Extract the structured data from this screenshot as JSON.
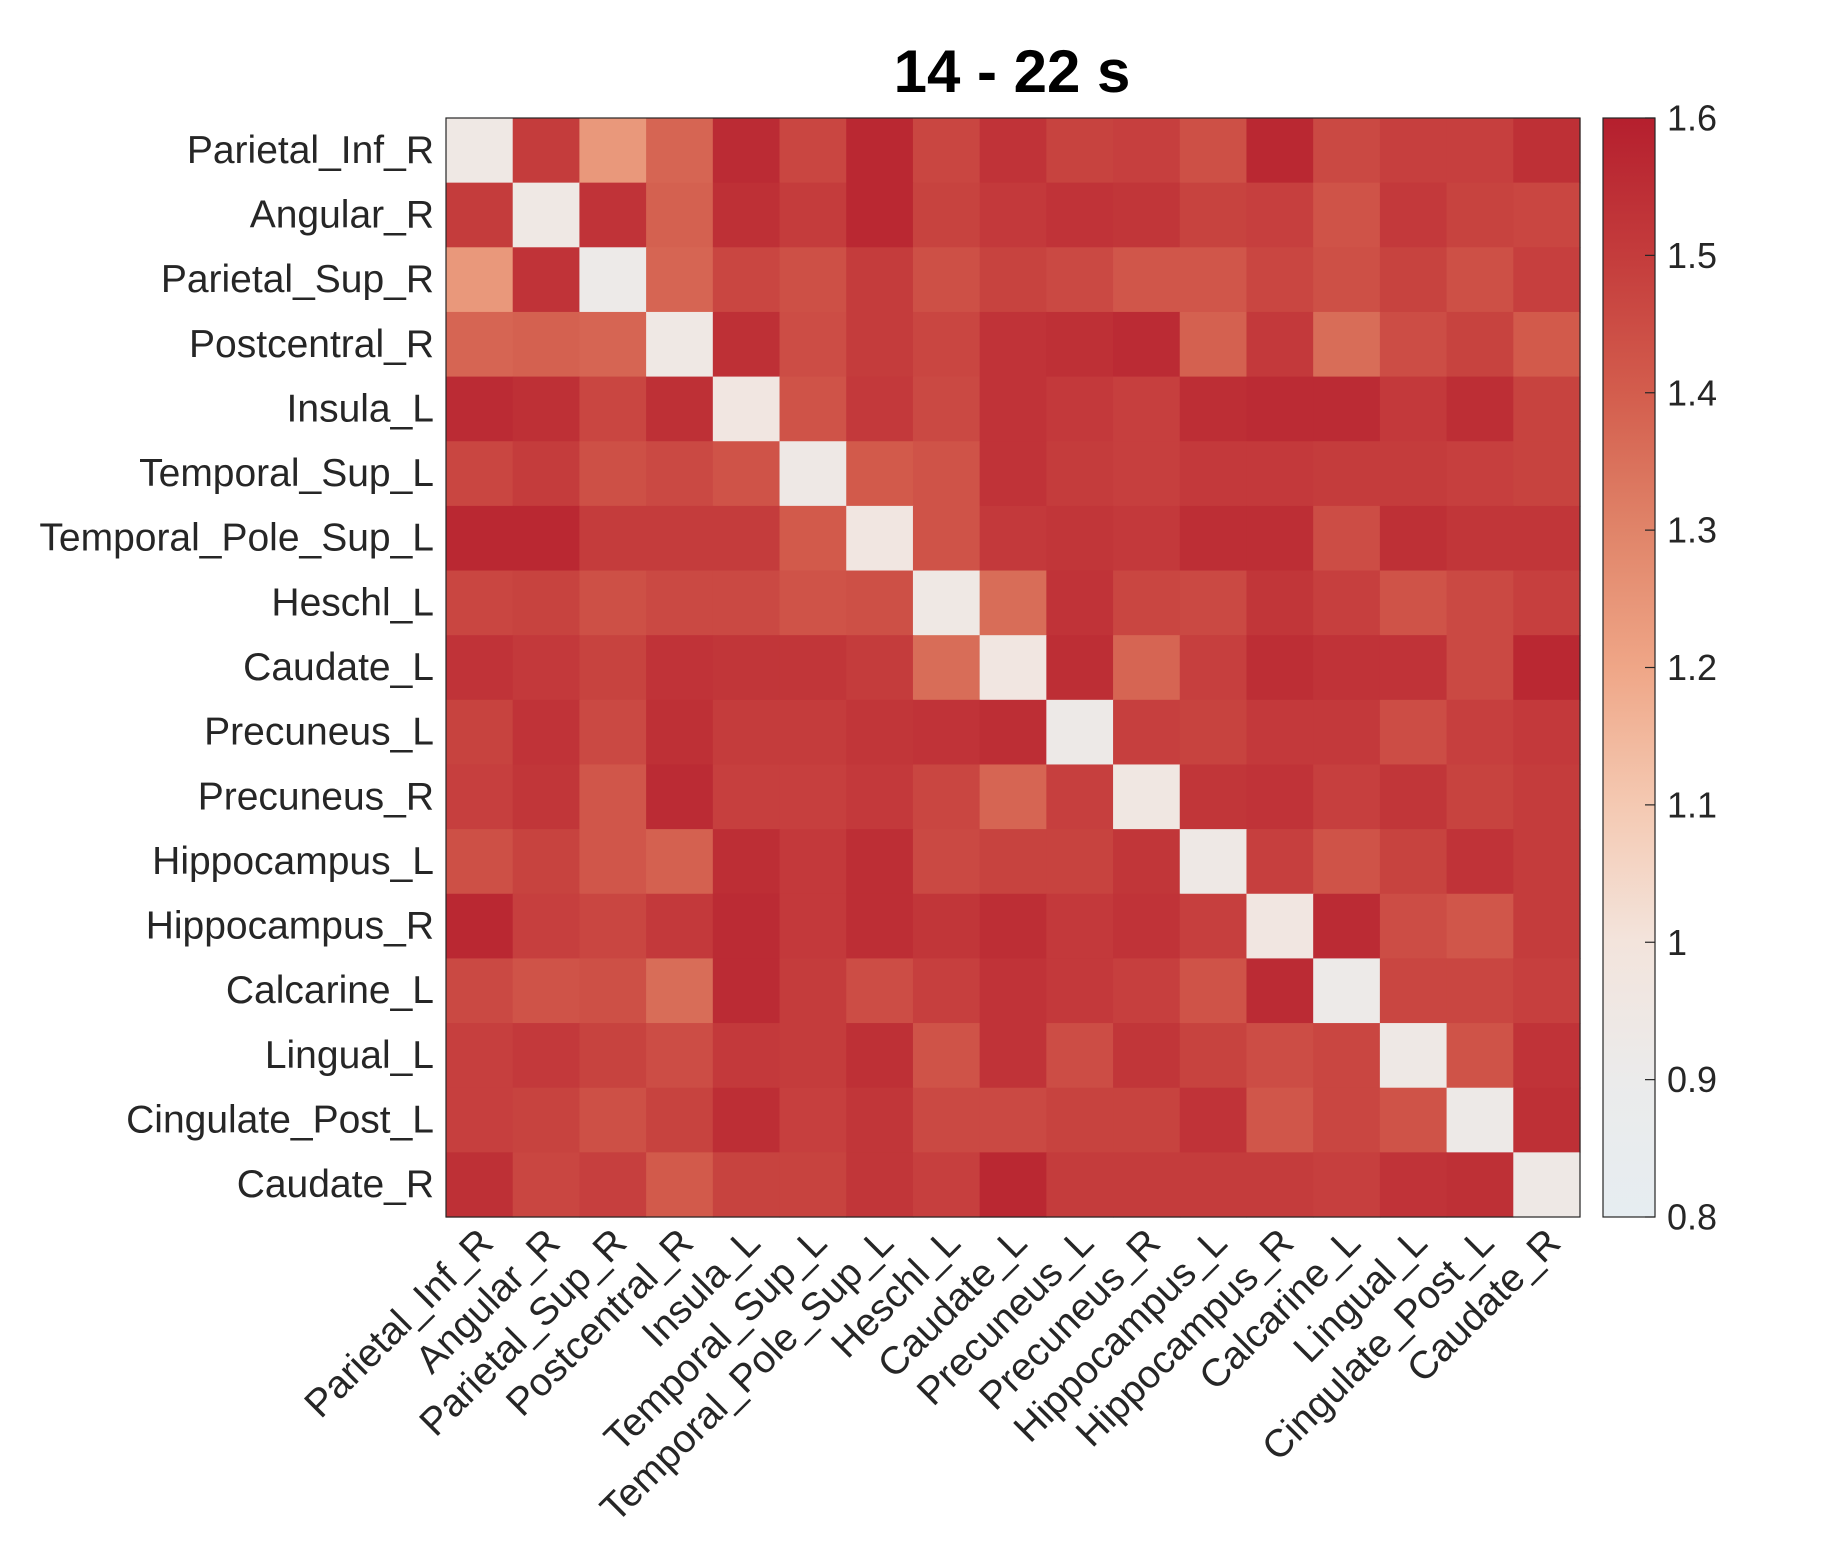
{
  "chart_data": {
    "type": "heatmap",
    "title": "14 - 22 s",
    "row_labels": [
      "Parietal_Inf_R",
      "Angular_R",
      "Parietal_Sup_R",
      "Postcentral_R",
      "Insula_L",
      "Temporal_Sup_L",
      "Temporal_Pole_Sup_L",
      "Heschl_L",
      "Caudate_L",
      "Precuneus_L",
      "Precuneus_R",
      "Hippocampus_L",
      "Hippocampus_R",
      "Calcarine_L",
      "Lingual_L",
      "Cingulate_Post_L",
      "Caudate_R"
    ],
    "col_labels": [
      "Parietal_Inf_R",
      "Angular_R",
      "Parietal_Sup_R",
      "Postcentral_R",
      "Insula_L",
      "Temporal_Sup_L",
      "Temporal_Pole_Sup_L",
      "Heschl_L",
      "Caudate_L",
      "Precuneus_L",
      "Precuneus_R",
      "Hippocampus_L",
      "Hippocampus_R",
      "Calcarine_L",
      "Lingual_L",
      "Cingulate_Post_L",
      "Caudate_R"
    ],
    "values": [
      [
        0.95,
        1.5,
        1.24,
        1.38,
        1.56,
        1.47,
        1.57,
        1.47,
        1.53,
        1.48,
        1.49,
        1.44,
        1.57,
        1.46,
        1.49,
        1.49,
        1.54
      ],
      [
        1.5,
        0.95,
        1.53,
        1.39,
        1.54,
        1.5,
        1.57,
        1.48,
        1.51,
        1.53,
        1.52,
        1.48,
        1.49,
        1.43,
        1.51,
        1.48,
        1.47
      ],
      [
        1.24,
        1.53,
        0.92,
        1.38,
        1.47,
        1.44,
        1.5,
        1.44,
        1.48,
        1.46,
        1.42,
        1.42,
        1.47,
        1.44,
        1.48,
        1.44,
        1.49
      ],
      [
        1.38,
        1.39,
        1.38,
        0.95,
        1.54,
        1.45,
        1.5,
        1.47,
        1.53,
        1.54,
        1.56,
        1.39,
        1.51,
        1.36,
        1.45,
        1.48,
        1.41
      ],
      [
        1.56,
        1.54,
        1.47,
        1.54,
        0.97,
        1.43,
        1.51,
        1.46,
        1.53,
        1.51,
        1.49,
        1.55,
        1.56,
        1.56,
        1.51,
        1.55,
        1.48
      ],
      [
        1.47,
        1.5,
        1.44,
        1.46,
        1.43,
        0.94,
        1.41,
        1.43,
        1.53,
        1.5,
        1.49,
        1.51,
        1.51,
        1.5,
        1.5,
        1.49,
        1.48
      ],
      [
        1.57,
        1.57,
        1.5,
        1.5,
        1.5,
        1.41,
        0.97,
        1.43,
        1.51,
        1.52,
        1.51,
        1.55,
        1.55,
        1.45,
        1.54,
        1.52,
        1.52
      ],
      [
        1.47,
        1.48,
        1.44,
        1.46,
        1.46,
        1.43,
        1.44,
        0.95,
        1.36,
        1.53,
        1.47,
        1.46,
        1.52,
        1.49,
        1.43,
        1.46,
        1.49
      ],
      [
        1.53,
        1.51,
        1.48,
        1.53,
        1.52,
        1.52,
        1.5,
        1.36,
        0.97,
        1.55,
        1.38,
        1.49,
        1.55,
        1.53,
        1.53,
        1.46,
        1.57
      ],
      [
        1.48,
        1.53,
        1.46,
        1.54,
        1.5,
        1.5,
        1.52,
        1.53,
        1.55,
        0.93,
        1.49,
        1.48,
        1.51,
        1.51,
        1.45,
        1.49,
        1.51
      ],
      [
        1.49,
        1.52,
        1.42,
        1.56,
        1.49,
        1.49,
        1.51,
        1.47,
        1.38,
        1.49,
        0.96,
        1.52,
        1.53,
        1.49,
        1.52,
        1.48,
        1.5
      ],
      [
        1.44,
        1.48,
        1.42,
        1.39,
        1.55,
        1.51,
        1.55,
        1.46,
        1.48,
        1.48,
        1.52,
        0.94,
        1.49,
        1.43,
        1.48,
        1.53,
        1.5
      ],
      [
        1.57,
        1.49,
        1.47,
        1.51,
        1.56,
        1.51,
        1.55,
        1.52,
        1.55,
        1.51,
        1.53,
        1.49,
        0.97,
        1.56,
        1.45,
        1.42,
        1.5
      ],
      [
        1.46,
        1.43,
        1.44,
        1.36,
        1.56,
        1.5,
        1.45,
        1.49,
        1.53,
        1.51,
        1.49,
        1.43,
        1.56,
        0.92,
        1.47,
        1.47,
        1.49
      ],
      [
        1.49,
        1.51,
        1.48,
        1.45,
        1.51,
        1.5,
        1.54,
        1.43,
        1.53,
        1.45,
        1.52,
        1.48,
        1.45,
        1.47,
        0.94,
        1.43,
        1.53
      ],
      [
        1.49,
        1.48,
        1.44,
        1.48,
        1.55,
        1.49,
        1.52,
        1.46,
        1.46,
        1.48,
        1.48,
        1.53,
        1.42,
        1.47,
        1.43,
        0.93,
        1.54
      ],
      [
        1.54,
        1.47,
        1.49,
        1.41,
        1.48,
        1.48,
        1.52,
        1.49,
        1.57,
        1.5,
        1.5,
        1.5,
        1.5,
        1.49,
        1.53,
        1.54,
        0.94
      ]
    ],
    "colorbar": {
      "min": 0.8,
      "max": 1.6,
      "tick_labels": [
        "1.6",
        "1.5",
        "1.4",
        "1.3",
        "1.2",
        "1.1",
        "1",
        "0.9",
        "0.8"
      ],
      "tick_values": [
        1.6,
        1.5,
        1.4,
        1.3,
        1.2,
        1.1,
        1.0,
        0.9,
        0.8
      ]
    },
    "colormap": {
      "stops": [
        0.8,
        0.9,
        1.0,
        1.1,
        1.2,
        1.3,
        1.4,
        1.5,
        1.6
      ],
      "colors": [
        "#e6edf1",
        "#ebebeb",
        "#f3e4dc",
        "#f4c9b2",
        "#efa687",
        "#e08469",
        "#d35d4d",
        "#c43c3c",
        "#b51f2e"
      ]
    }
  }
}
